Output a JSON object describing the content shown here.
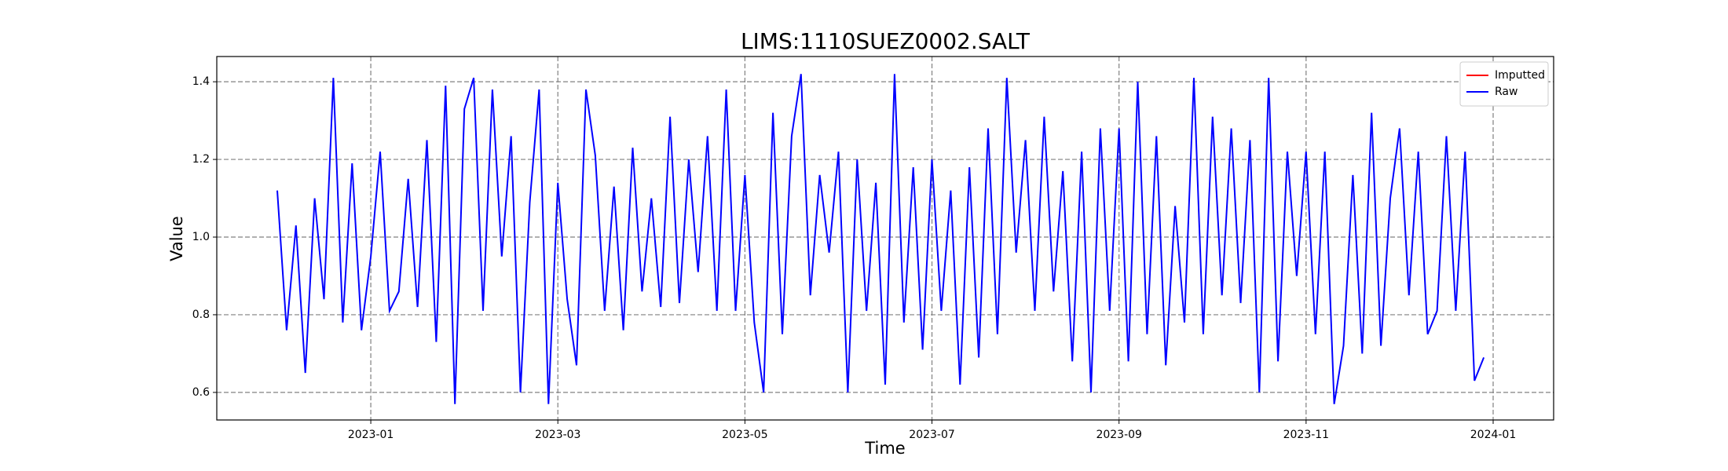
{
  "chart_data": {
    "type": "line",
    "title": "LIMS:1110SUEZ0002.SALT",
    "x_label": "Time",
    "y_label": "Value",
    "xlim": [
      "2022-12",
      "2024-01"
    ],
    "xticks": [
      "2023-01",
      "2023-03",
      "2023-05",
      "2023-07",
      "2023-09",
      "2023-11",
      "2024-01"
    ],
    "ylim": [
      0.529,
      1.465
    ],
    "yticks": [
      0.6,
      0.8,
      {
        "value": 1,
        "label": "1.0"
      },
      1.2,
      1.4
    ],
    "grid": true,
    "legend": "upper right",
    "series": [
      {
        "name": "Imputted",
        "color": "#ff0000",
        "x": [],
        "values": []
      },
      {
        "name": "Raw",
        "color": "#0000ff",
        "x": [
          "2022-12",
          "2022-12",
          "2022-12",
          "2022-12",
          "2022-12",
          "2022-12",
          "2022-12",
          "2022-12",
          "2022-12",
          "2022-12",
          "2023-01",
          "2023-01",
          "2023-01",
          "2023-01",
          "2023-01",
          "2023-01",
          "2023-01",
          "2023-01",
          "2023-01",
          "2023-01",
          "2023-02",
          "2023-02",
          "2023-02",
          "2023-02",
          "2023-02",
          "2023-02",
          "2023-02",
          "2023-02",
          "2023-02",
          "2023-02",
          "2023-03",
          "2023-03",
          "2023-03",
          "2023-03",
          "2023-03",
          "2023-03",
          "2023-03",
          "2023-03",
          "2023-03",
          "2023-03",
          "2023-04",
          "2023-04",
          "2023-04",
          "2023-04",
          "2023-04",
          "2023-04",
          "2023-04",
          "2023-04",
          "2023-04",
          "2023-04",
          "2023-05",
          "2023-05",
          "2023-05",
          "2023-05",
          "2023-05",
          "2023-05",
          "2023-05",
          "2023-05",
          "2023-05",
          "2023-05",
          "2023-06",
          "2023-06",
          "2023-06",
          "2023-06",
          "2023-06",
          "2023-06",
          "2023-06",
          "2023-06",
          "2023-06",
          "2023-06",
          "2023-07",
          "2023-07",
          "2023-07",
          "2023-07",
          "2023-07",
          "2023-07",
          "2023-07",
          "2023-07",
          "2023-07",
          "2023-07",
          "2023-08",
          "2023-08",
          "2023-08",
          "2023-08",
          "2023-08",
          "2023-08",
          "2023-08",
          "2023-08",
          "2023-08",
          "2023-08",
          "2023-09",
          "2023-09",
          "2023-09",
          "2023-09",
          "2023-09",
          "2023-09",
          "2023-09",
          "2023-09",
          "2023-09",
          "2023-09",
          "2023-10",
          "2023-10",
          "2023-10",
          "2023-10",
          "2023-10",
          "2023-10",
          "2023-10",
          "2023-10",
          "2023-10",
          "2023-10",
          "2023-11",
          "2023-11",
          "2023-11",
          "2023-11",
          "2023-11",
          "2023-11",
          "2023-11",
          "2023-11",
          "2023-11",
          "2023-11",
          "2023-12",
          "2023-12",
          "2023-12",
          "2023-12",
          "2023-12",
          "2023-12",
          "2023-12",
          "2023-12",
          "2023-12",
          "2023-12"
        ],
        "values": [
          1.12,
          0.76,
          1.03,
          0.65,
          1.1,
          0.84,
          1.41,
          0.78,
          1.19,
          0.76,
          0.95,
          1.22,
          0.81,
          0.86,
          1.15,
          0.82,
          1.25,
          0.73,
          1.39,
          0.57,
          1.33,
          1.41,
          0.81,
          1.38,
          0.95,
          1.26,
          0.6,
          1.09,
          1.38,
          0.57,
          1.14,
          0.84,
          0.67,
          1.38,
          1.21,
          0.81,
          1.13,
          0.76,
          1.23,
          0.86,
          1.1,
          0.82,
          1.31,
          0.83,
          1.2,
          0.91,
          1.26,
          0.81,
          1.38,
          0.81,
          1.16,
          0.78,
          0.6,
          1.32,
          0.75,
          1.26,
          1.42,
          0.85,
          1.16,
          0.96,
          1.22,
          0.6,
          1.2,
          0.81,
          1.14,
          0.62,
          1.42,
          0.78,
          1.18,
          0.71,
          1.2,
          0.81,
          1.12,
          0.62,
          1.18,
          0.69,
          1.28,
          0.75,
          1.41,
          0.96,
          1.25,
          0.81,
          1.31,
          0.86,
          1.17,
          0.68,
          1.22,
          0.6,
          1.28,
          0.81,
          1.28,
          0.68,
          1.4,
          0.75,
          1.26,
          0.67,
          1.08,
          0.78,
          1.41,
          0.75,
          1.31,
          0.85,
          1.28,
          0.83,
          1.25,
          0.6,
          1.41,
          0.68,
          1.22,
          0.9,
          1.22,
          0.75,
          1.22,
          0.57,
          0.72,
          1.16,
          0.7,
          1.32,
          0.72,
          1.1,
          1.28,
          0.85,
          1.22,
          0.75,
          0.81,
          1.26,
          0.81,
          1.22,
          0.63,
          0.69
        ]
      }
    ]
  }
}
